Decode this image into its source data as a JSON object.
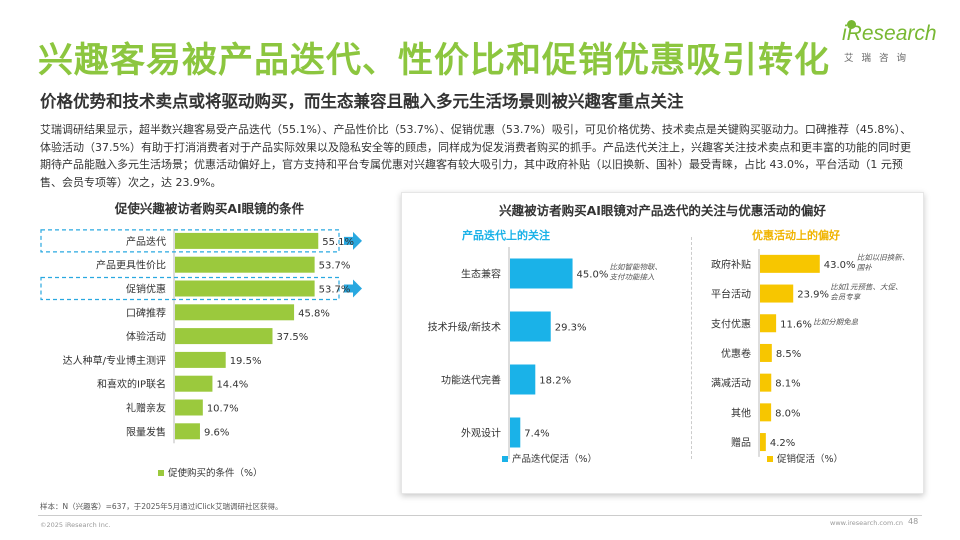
{
  "title": "兴趣客易被产品迭代、性价比和促销优惠吸引转化",
  "subtitle": "价格优势和技术卖点或将驱动购买，而生态兼容且融入多元生活场景则被兴趣客重点关注",
  "logo": {
    "text": "iResearch",
    "cn": "艾瑞咨询"
  },
  "intro": "艾瑞调研结果显示，超半数兴趣客易受产品迭代（55.1%）、产品性价比（53.7%）、促销优惠（53.7%）吸引，可见价格优势、技术卖点是关键购买驱动力。口碑推荐（45.8%）、体验活动（37.5%）有助于打消消费者对于产品实际效果以及隐私安全等的顾虑，同样成为促发消费者购买的抓手。产品迭代关注上，兴趣客关注技术卖点和更丰富的功能的同时更期待产品能融入多元生活场景；优惠活动偏好上，官方支持和平台专属优惠对兴趣客有较大吸引力，其中政府补贴（以旧换新、国补）最受青睐，占比 43.0%，平台活动（1 元预售、会员专项等）次之，达 23.9%。",
  "colors": {
    "green": "#8cc63f",
    "lime": "#9bc93d",
    "cyan": "#1ab2e8",
    "gold": "#f7c600",
    "highlight": "#29a8e0"
  },
  "chart_data": [
    {
      "type": "bar",
      "orientation": "horizontal",
      "title": "促使兴趣被访者购买AI眼镜的条件",
      "categories": [
        "产品迭代",
        "产品更具性价比",
        "促销优惠",
        "口碑推荐",
        "体验活动",
        "达人种草/专业博主测评",
        "和喜欢的IP联名",
        "礼赠亲友",
        "限量发售"
      ],
      "values": [
        55.1,
        53.7,
        53.7,
        45.8,
        37.5,
        19.5,
        14.4,
        10.7,
        9.6
      ],
      "value_labels": [
        "55.1%",
        "53.7%",
        "53.7%",
        "45.8%",
        "37.5%",
        "19.5%",
        "14.4%",
        "10.7%",
        "9.6%"
      ],
      "highlighted": [
        "产品迭代",
        "促销优惠"
      ],
      "legend": "促使购买的条件（%）",
      "xlim": [
        0,
        100
      ],
      "unit": "%"
    },
    {
      "type": "bar",
      "orientation": "horizontal",
      "title": "兴趣被访者购买AI眼镜对产品迭代的关注与优惠活动的偏好",
      "subtitle": "产品迭代上的关注",
      "categories": [
        "生态兼容",
        "技术升级/新技术",
        "功能迭代完善",
        "外观设计"
      ],
      "values": [
        45.0,
        29.3,
        18.2,
        7.4
      ],
      "value_labels": [
        "45.0%",
        "29.3%",
        "18.2%",
        "7.4%"
      ],
      "annotations": {
        "生态兼容": [
          "比如智能物联、",
          "支付功能接入"
        ]
      },
      "legend": "产品迭代促活（%）",
      "xlim": [
        0,
        100
      ],
      "unit": "%"
    },
    {
      "type": "bar",
      "orientation": "horizontal",
      "subtitle": "优惠活动上的偏好",
      "categories": [
        "政府补贴",
        "平台活动",
        "支付优惠",
        "优惠卷",
        "满减活动",
        "其他",
        "赠品"
      ],
      "values": [
        43.0,
        23.9,
        11.6,
        8.5,
        8.1,
        8.0,
        4.2
      ],
      "value_labels": [
        "43.0%",
        "23.9%",
        "11.6%",
        "8.5%",
        "8.1%",
        "8.0%",
        "4.2%"
      ],
      "annotations": {
        "政府补贴": [
          "比如以旧换新、",
          "国补"
        ],
        "平台活动": [
          "比如1元预售、大促、",
          "会员专享"
        ],
        "支付优惠": [
          "比如分期免息"
        ]
      },
      "legend": "促销促活（%）",
      "xlim": [
        0,
        100
      ],
      "unit": "%"
    }
  ],
  "footer": {
    "note": "样本：N（兴趣客）=637，于2025年5月通过iClick艾瑞调研社区获得。",
    "copyright": "©2025 iResearch Inc.",
    "website": "www.iresearch.com.cn",
    "page": "48"
  }
}
